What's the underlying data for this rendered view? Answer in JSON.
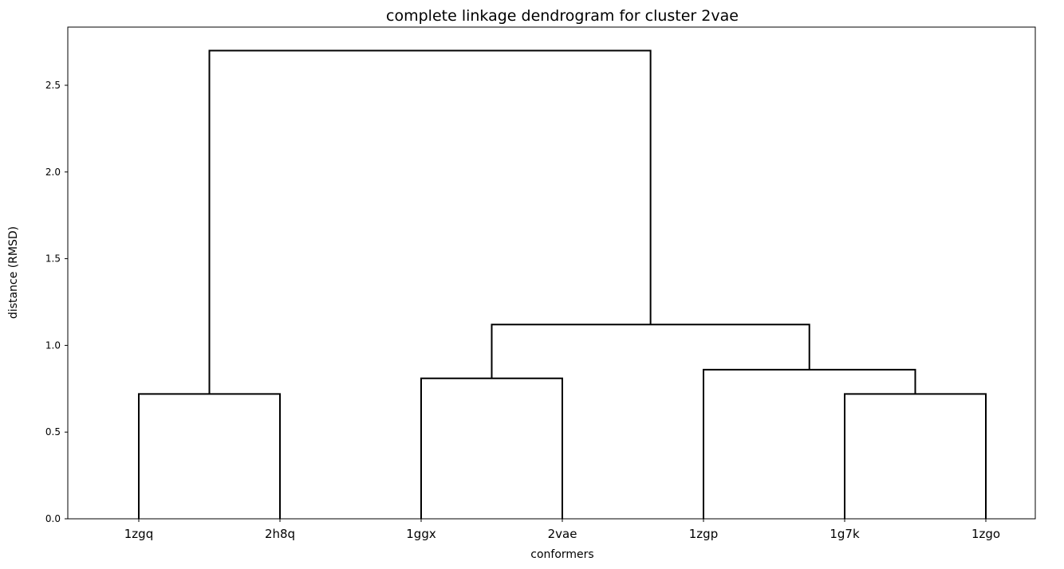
{
  "chart_data": {
    "type": "dendrogram",
    "title": "complete linkage dendrogram for cluster 2vae",
    "xlabel": "conformers",
    "ylabel": "distance (RMSD)",
    "ylim": [
      0,
      2.84
    ],
    "yticks": [
      "0.0",
      "0.5",
      "1.0",
      "1.5",
      "2.0",
      "2.5"
    ],
    "leaves": [
      "1zgq",
      "2h8q",
      "1ggx",
      "2vae",
      "1zgp",
      "1g7k",
      "1zgo"
    ],
    "merges": [
      {
        "left": "1zgq",
        "right": "2h8q",
        "height": 0.72
      },
      {
        "left": "1ggx",
        "right": "2vae",
        "height": 0.81
      },
      {
        "left": "1g7k",
        "right": "1zgo",
        "height": 0.72
      },
      {
        "left": "1zgp",
        "right": "(1g7k, 1zgo)",
        "height": 0.86
      },
      {
        "left": "(1ggx, 2vae)",
        "right": "(1zgp, (1g7k, 1zgo))",
        "height": 1.12
      },
      {
        "left": "(1zgq, 2h8q)",
        "right": "((1ggx, 2vae), (1zgp, (1g7k, 1zgo)))",
        "height": 2.7
      }
    ],
    "line_color": "#000000",
    "grid": false
  }
}
